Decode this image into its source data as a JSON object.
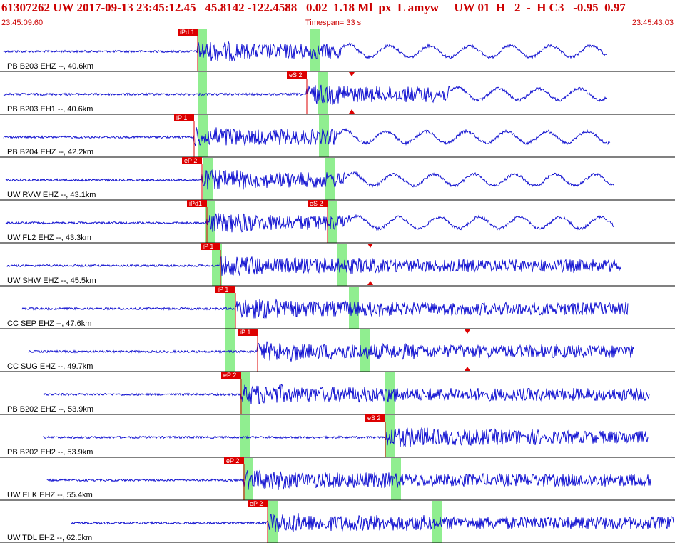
{
  "header": {
    "title": "61307262 UW 2017-09-13 23:45:12.45   45.8142 -122.4588   0.02  1.18 Ml  px  L amyw     UW 01  H   2  -  H C3   -0.95  0.97",
    "start_time": "23:45:09.60",
    "timespan": "Timespan=  33 s",
    "end_time": "23:45:43.03"
  },
  "colors": {
    "trace": "#1010d0",
    "pick": "#dd0000",
    "window": "#90ee90",
    "text": "#cc0000"
  },
  "traces": [
    {
      "label": "PB B203 EHZ --, 40.6km",
      "pick": "iPd 1",
      "pick2": "",
      "marker": false
    },
    {
      "label": "PB B203 EH1 --, 40.6km",
      "pick": "",
      "pick2": "eS 2",
      "marker": true
    },
    {
      "label": "PB B204 EHZ --, 42.2km",
      "pick": "iP 1",
      "pick2": "",
      "marker": false
    },
    {
      "label": "UW RVW EHZ --, 43.1km",
      "pick": "eP 2",
      "pick2": "",
      "marker": false
    },
    {
      "label": "UW FL2 EHZ --, 43.3km",
      "pick": "iPd1",
      "pick2": "eS 2",
      "marker": false
    },
    {
      "label": "UW SHW EHZ --, 45.5km",
      "pick": "iP 1",
      "pick2": "",
      "marker": true
    },
    {
      "label": "CC SEP EHZ --, 47.6km",
      "pick": "iP 1",
      "pick2": "",
      "marker": false
    },
    {
      "label": "CC SUG EHZ --, 49.7km",
      "pick": "iP 1",
      "pick2": "",
      "marker": true
    },
    {
      "label": "PB B202 EHZ --, 53.9km",
      "pick": "eP 2",
      "pick2": "",
      "marker": false
    },
    {
      "label": "PB B202 EH2 --, 53.9km",
      "pick": "",
      "pick2": "eS 2",
      "marker": false
    },
    {
      "label": "UW ELK EHZ --, 55.4km",
      "pick": "eP 2",
      "pick2": "",
      "marker": false
    },
    {
      "label": "UW TDL EHZ --, 62.5km",
      "pick": "eP 2",
      "pick2": "",
      "marker": false
    }
  ]
}
